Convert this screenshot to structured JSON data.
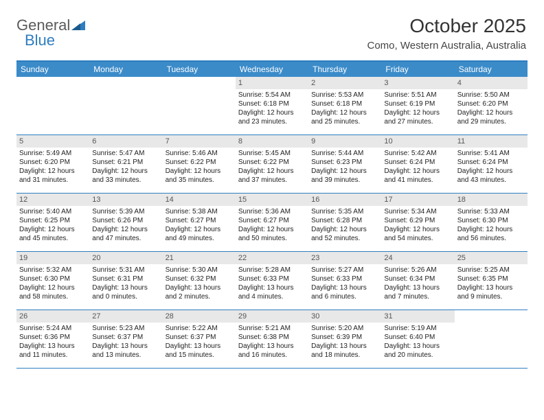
{
  "logo": {
    "part1": "General",
    "part2": "Blue"
  },
  "title": "October 2025",
  "location": "Como, Western Australia, Australia",
  "colors": {
    "header_bg": "#3b8bc9",
    "header_text": "#ffffff",
    "border": "#2d7dc0",
    "daynum_bg": "#e8e8e8",
    "daynum_text": "#555555",
    "body_text": "#222222",
    "page_bg": "#ffffff",
    "logo_gray": "#5a5a5a",
    "logo_blue": "#2d7dc0"
  },
  "day_headers": [
    "Sunday",
    "Monday",
    "Tuesday",
    "Wednesday",
    "Thursday",
    "Friday",
    "Saturday"
  ],
  "weeks": [
    [
      {
        "empty": true
      },
      {
        "empty": true
      },
      {
        "empty": true
      },
      {
        "day": "1",
        "sunrise": "Sunrise: 5:54 AM",
        "sunset": "Sunset: 6:18 PM",
        "daylight": "Daylight: 12 hours and 23 minutes."
      },
      {
        "day": "2",
        "sunrise": "Sunrise: 5:53 AM",
        "sunset": "Sunset: 6:18 PM",
        "daylight": "Daylight: 12 hours and 25 minutes."
      },
      {
        "day": "3",
        "sunrise": "Sunrise: 5:51 AM",
        "sunset": "Sunset: 6:19 PM",
        "daylight": "Daylight: 12 hours and 27 minutes."
      },
      {
        "day": "4",
        "sunrise": "Sunrise: 5:50 AM",
        "sunset": "Sunset: 6:20 PM",
        "daylight": "Daylight: 12 hours and 29 minutes."
      }
    ],
    [
      {
        "day": "5",
        "sunrise": "Sunrise: 5:49 AM",
        "sunset": "Sunset: 6:20 PM",
        "daylight": "Daylight: 12 hours and 31 minutes."
      },
      {
        "day": "6",
        "sunrise": "Sunrise: 5:47 AM",
        "sunset": "Sunset: 6:21 PM",
        "daylight": "Daylight: 12 hours and 33 minutes."
      },
      {
        "day": "7",
        "sunrise": "Sunrise: 5:46 AM",
        "sunset": "Sunset: 6:22 PM",
        "daylight": "Daylight: 12 hours and 35 minutes."
      },
      {
        "day": "8",
        "sunrise": "Sunrise: 5:45 AM",
        "sunset": "Sunset: 6:22 PM",
        "daylight": "Daylight: 12 hours and 37 minutes."
      },
      {
        "day": "9",
        "sunrise": "Sunrise: 5:44 AM",
        "sunset": "Sunset: 6:23 PM",
        "daylight": "Daylight: 12 hours and 39 minutes."
      },
      {
        "day": "10",
        "sunrise": "Sunrise: 5:42 AM",
        "sunset": "Sunset: 6:24 PM",
        "daylight": "Daylight: 12 hours and 41 minutes."
      },
      {
        "day": "11",
        "sunrise": "Sunrise: 5:41 AM",
        "sunset": "Sunset: 6:24 PM",
        "daylight": "Daylight: 12 hours and 43 minutes."
      }
    ],
    [
      {
        "day": "12",
        "sunrise": "Sunrise: 5:40 AM",
        "sunset": "Sunset: 6:25 PM",
        "daylight": "Daylight: 12 hours and 45 minutes."
      },
      {
        "day": "13",
        "sunrise": "Sunrise: 5:39 AM",
        "sunset": "Sunset: 6:26 PM",
        "daylight": "Daylight: 12 hours and 47 minutes."
      },
      {
        "day": "14",
        "sunrise": "Sunrise: 5:38 AM",
        "sunset": "Sunset: 6:27 PM",
        "daylight": "Daylight: 12 hours and 49 minutes."
      },
      {
        "day": "15",
        "sunrise": "Sunrise: 5:36 AM",
        "sunset": "Sunset: 6:27 PM",
        "daylight": "Daylight: 12 hours and 50 minutes."
      },
      {
        "day": "16",
        "sunrise": "Sunrise: 5:35 AM",
        "sunset": "Sunset: 6:28 PM",
        "daylight": "Daylight: 12 hours and 52 minutes."
      },
      {
        "day": "17",
        "sunrise": "Sunrise: 5:34 AM",
        "sunset": "Sunset: 6:29 PM",
        "daylight": "Daylight: 12 hours and 54 minutes."
      },
      {
        "day": "18",
        "sunrise": "Sunrise: 5:33 AM",
        "sunset": "Sunset: 6:30 PM",
        "daylight": "Daylight: 12 hours and 56 minutes."
      }
    ],
    [
      {
        "day": "19",
        "sunrise": "Sunrise: 5:32 AM",
        "sunset": "Sunset: 6:30 PM",
        "daylight": "Daylight: 12 hours and 58 minutes."
      },
      {
        "day": "20",
        "sunrise": "Sunrise: 5:31 AM",
        "sunset": "Sunset: 6:31 PM",
        "daylight": "Daylight: 13 hours and 0 minutes."
      },
      {
        "day": "21",
        "sunrise": "Sunrise: 5:30 AM",
        "sunset": "Sunset: 6:32 PM",
        "daylight": "Daylight: 13 hours and 2 minutes."
      },
      {
        "day": "22",
        "sunrise": "Sunrise: 5:28 AM",
        "sunset": "Sunset: 6:33 PM",
        "daylight": "Daylight: 13 hours and 4 minutes."
      },
      {
        "day": "23",
        "sunrise": "Sunrise: 5:27 AM",
        "sunset": "Sunset: 6:33 PM",
        "daylight": "Daylight: 13 hours and 6 minutes."
      },
      {
        "day": "24",
        "sunrise": "Sunrise: 5:26 AM",
        "sunset": "Sunset: 6:34 PM",
        "daylight": "Daylight: 13 hours and 7 minutes."
      },
      {
        "day": "25",
        "sunrise": "Sunrise: 5:25 AM",
        "sunset": "Sunset: 6:35 PM",
        "daylight": "Daylight: 13 hours and 9 minutes."
      }
    ],
    [
      {
        "day": "26",
        "sunrise": "Sunrise: 5:24 AM",
        "sunset": "Sunset: 6:36 PM",
        "daylight": "Daylight: 13 hours and 11 minutes."
      },
      {
        "day": "27",
        "sunrise": "Sunrise: 5:23 AM",
        "sunset": "Sunset: 6:37 PM",
        "daylight": "Daylight: 13 hours and 13 minutes."
      },
      {
        "day": "28",
        "sunrise": "Sunrise: 5:22 AM",
        "sunset": "Sunset: 6:37 PM",
        "daylight": "Daylight: 13 hours and 15 minutes."
      },
      {
        "day": "29",
        "sunrise": "Sunrise: 5:21 AM",
        "sunset": "Sunset: 6:38 PM",
        "daylight": "Daylight: 13 hours and 16 minutes."
      },
      {
        "day": "30",
        "sunrise": "Sunrise: 5:20 AM",
        "sunset": "Sunset: 6:39 PM",
        "daylight": "Daylight: 13 hours and 18 minutes."
      },
      {
        "day": "31",
        "sunrise": "Sunrise: 5:19 AM",
        "sunset": "Sunset: 6:40 PM",
        "daylight": "Daylight: 13 hours and 20 minutes."
      },
      {
        "empty": true
      }
    ]
  ]
}
